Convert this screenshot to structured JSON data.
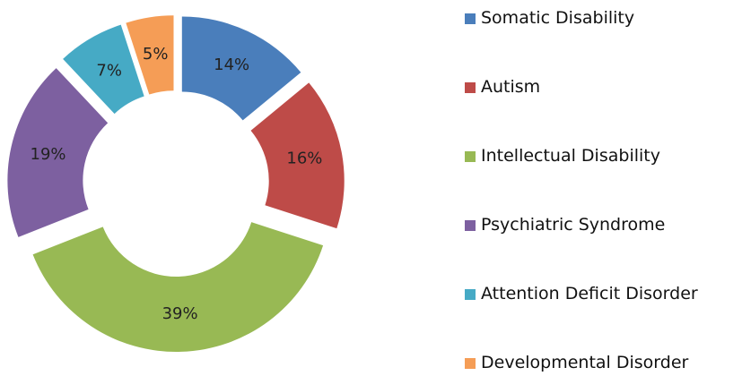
{
  "chart_data": {
    "type": "pie",
    "categories": [
      "Somatic Disability",
      "Autism",
      "Intellectual Disability",
      "Psychiatric Syndrome",
      "Attention Deficit Disorder",
      "Developmental Disorder"
    ],
    "values": [
      14,
      16,
      39,
      19,
      7,
      5
    ],
    "value_labels": [
      "14%",
      "16%",
      "39%",
      "19%",
      "7%",
      "5%"
    ],
    "colors": [
      "#4a7ebb",
      "#be4b48",
      "#98b954",
      "#7d60a0",
      "#46aac5",
      "#f59d56"
    ],
    "legend": "right"
  }
}
